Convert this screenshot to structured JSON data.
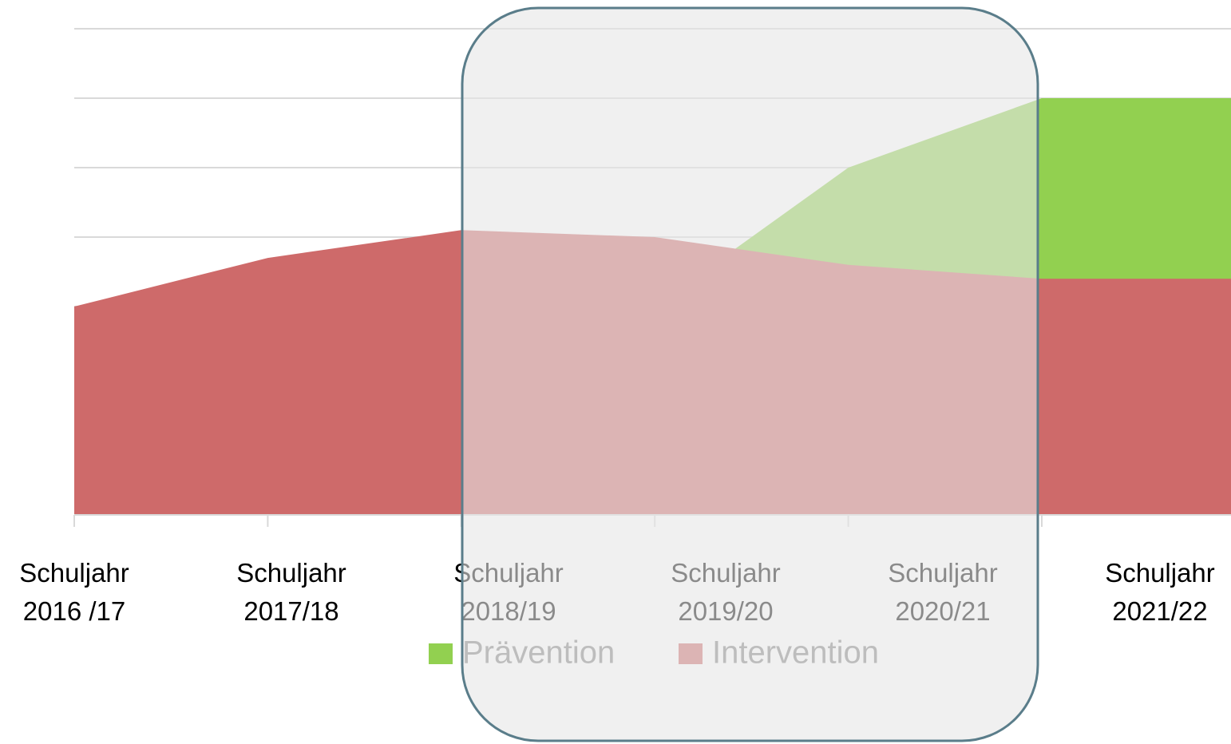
{
  "chart_data": {
    "type": "area",
    "categories": [
      "Schuljahr 2016 /17",
      "Schuljahr 2017/18",
      "Schuljahr 2018/19",
      "Schuljahr 2019/20",
      "Schuljahr 2020/21",
      "Schuljahr 2021/22"
    ],
    "series": [
      {
        "name": "Prävention",
        "color": "#92d050",
        "values": [
          null,
          null,
          null,
          3,
          5,
          6
        ]
      },
      {
        "name": "Intervention",
        "color": "#ce6a6a",
        "values": [
          3,
          3.7,
          4.1,
          4,
          3.6,
          3.4
        ]
      }
    ],
    "ylim": [
      0,
      7
    ],
    "yticks": [
      0,
      1,
      2,
      3,
      4,
      5,
      6,
      7
    ],
    "grid": true,
    "legend": "bottom"
  }
}
